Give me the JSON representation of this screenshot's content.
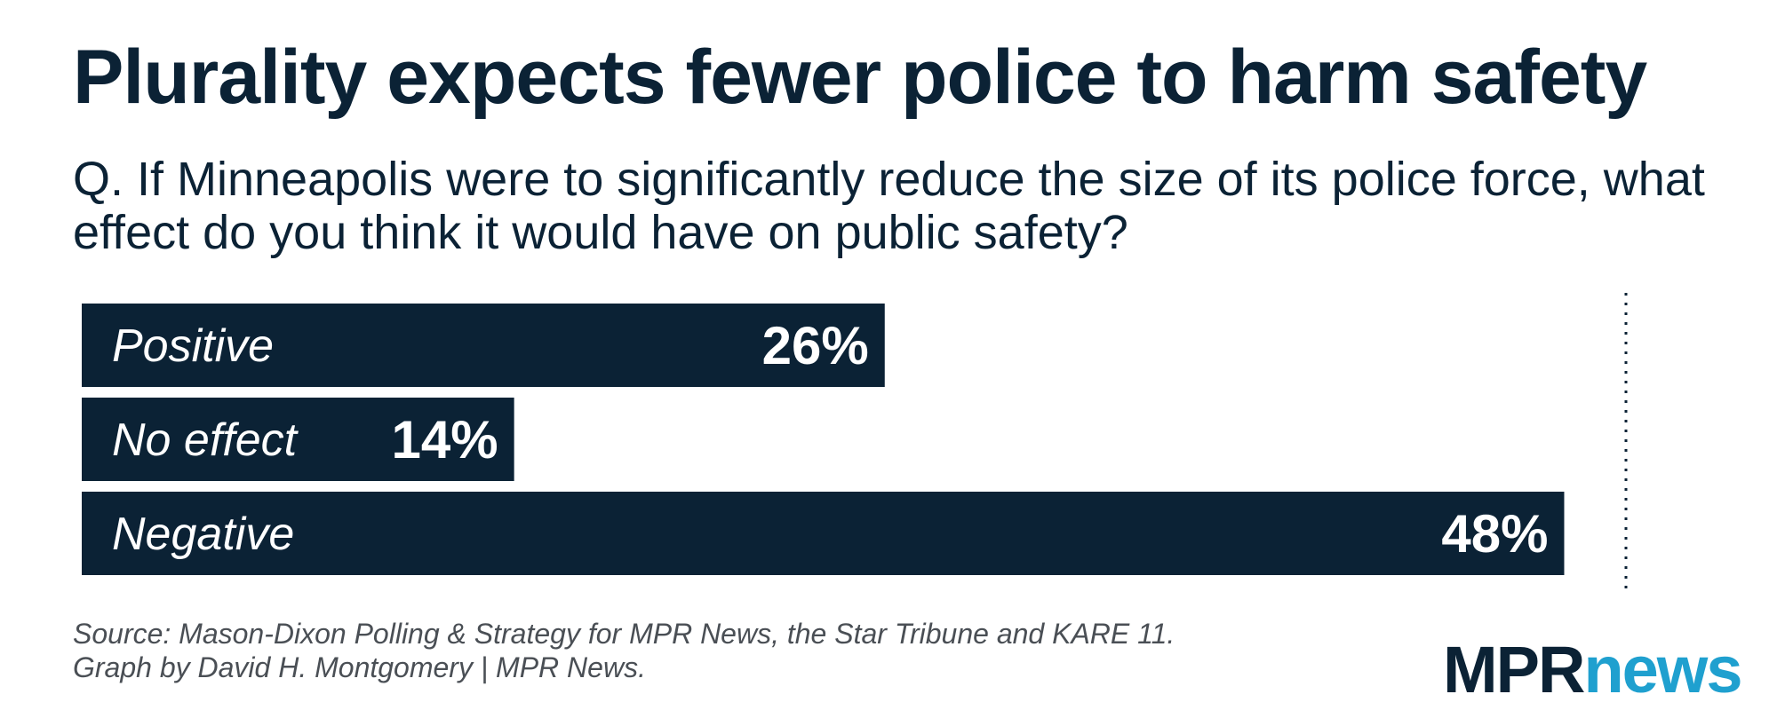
{
  "title": "Plurality expects fewer police to harm safety",
  "subtitle": "Q. If Minneapolis were to significantly reduce the size of its police force, what effect do you think it would have on public safety?",
  "source": {
    "line1": "Source: Mason-Dixon Polling & Strategy for MPR News, the Star Tribune and KARE 11.",
    "line2": "Graph by David H. Montgomery | MPR News."
  },
  "logo": {
    "part1": "MPR",
    "part2": "news"
  },
  "colors": {
    "bar": "#0b2235",
    "text_on_bar": "#ffffff",
    "logo_accent": "#1fa0cf"
  },
  "chart_data": {
    "type": "bar",
    "orientation": "horizontal",
    "categories": [
      "Positive",
      "No effect",
      "Negative"
    ],
    "values": [
      26,
      14,
      48
    ],
    "value_labels": [
      "26%",
      "14%",
      "48%"
    ],
    "xlim": [
      0,
      50
    ],
    "reference_line": 50,
    "grid": false
  }
}
